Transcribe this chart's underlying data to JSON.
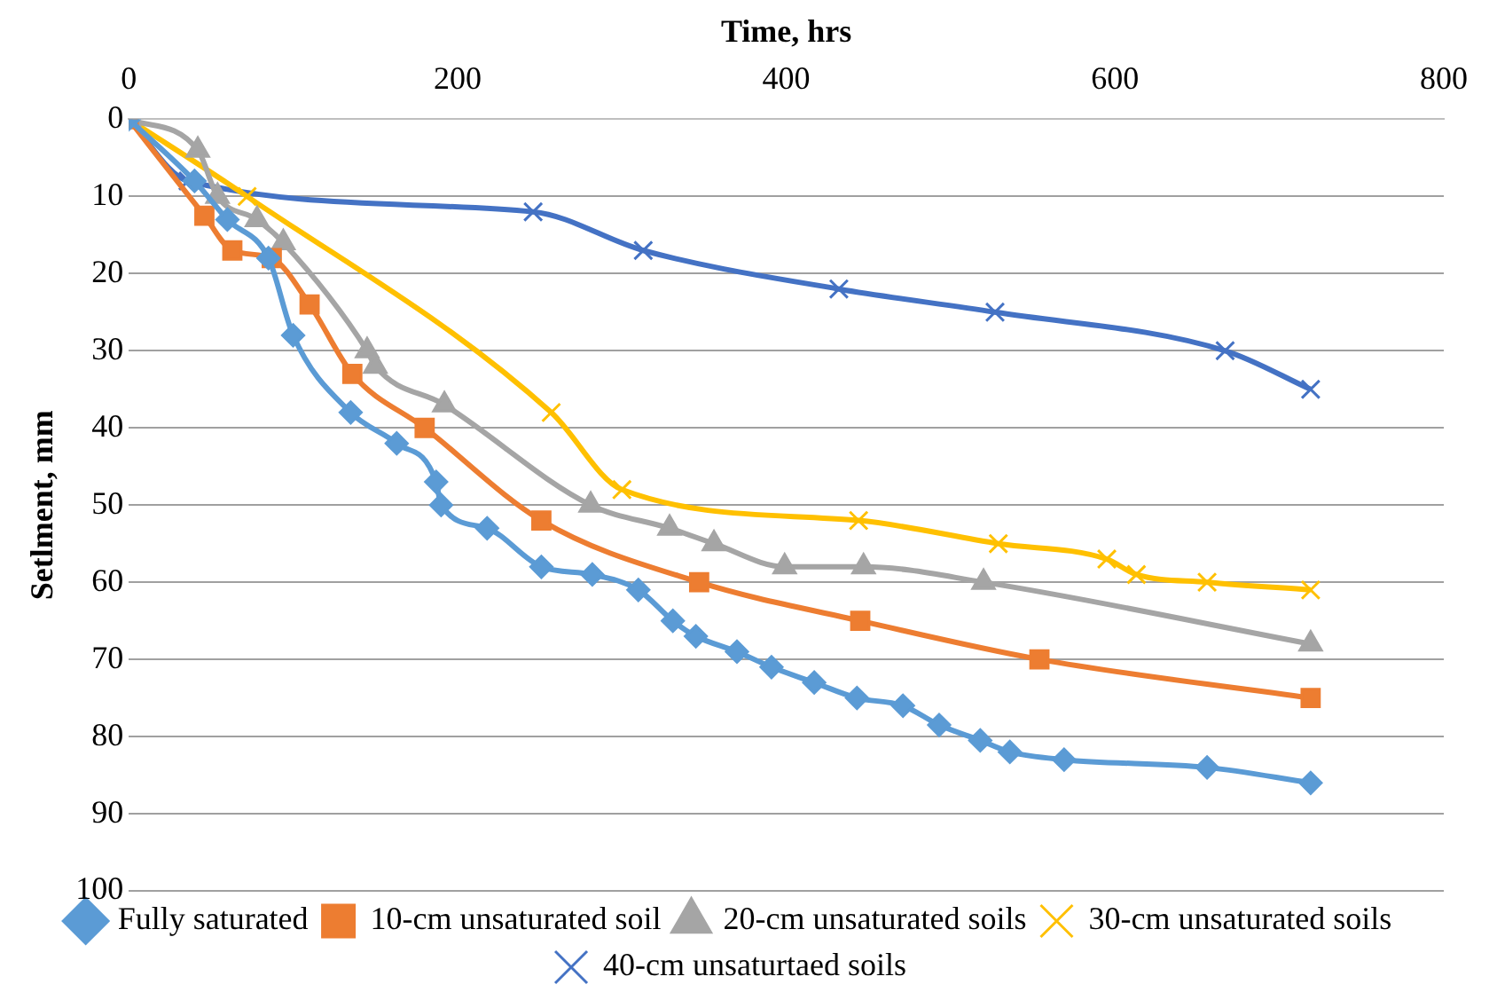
{
  "chart_data": {
    "type": "line",
    "xlabel": "Time, hrs",
    "ylabel": "Setlment, mm",
    "xlim": [
      0,
      800
    ],
    "xticks": [
      0,
      200,
      400,
      600,
      800
    ],
    "ylim": [
      100,
      0
    ],
    "yticks": [
      0,
      10,
      20,
      30,
      40,
      50,
      60,
      70,
      80,
      90,
      100
    ],
    "grid": "y",
    "legend": "bottom",
    "line_style": "solid",
    "series": [
      {
        "name": "Fully saturated",
        "color": "#5b9bd5",
        "marker": "diamond",
        "x": [
          0,
          40,
          60,
          85,
          100,
          135,
          163,
          187,
          190,
          218,
          251,
          282,
          310,
          331,
          345,
          370,
          391,
          417,
          443,
          471,
          493,
          518,
          536,
          569,
          656,
          719
        ],
        "values": [
          0,
          8,
          13,
          18,
          28,
          38,
          42,
          47,
          50,
          53,
          58,
          59,
          61,
          65,
          67,
          69,
          71,
          73,
          75,
          76,
          78.5,
          80.5,
          82,
          83,
          84,
          86
        ]
      },
      {
        "name": "10-cm unsaturated soil",
        "color": "#ed7d31",
        "marker": "square",
        "x": [
          0,
          46,
          63,
          87,
          110,
          136,
          180,
          251,
          347,
          445,
          554,
          719
        ],
        "values": [
          0,
          12.5,
          17,
          18,
          24,
          33,
          40,
          52,
          60,
          65,
          70,
          75
        ]
      },
      {
        "name": "20-cm unsaturated soils",
        "color": "#a5a5a5",
        "marker": "triangle",
        "x": [
          0,
          42,
          54,
          78,
          94,
          145,
          150,
          192,
          281,
          329,
          356,
          399,
          447,
          520,
          719
        ],
        "values": [
          0,
          4,
          10,
          13,
          16,
          30,
          32,
          37,
          50,
          53,
          55,
          58,
          58,
          60,
          68
        ]
      },
      {
        "name": "30-cm unsaturated soils",
        "color": "#ffc000",
        "marker": "cross",
        "x": [
          0,
          72,
          257,
          300,
          444,
          529,
          595,
          613,
          656,
          719
        ],
        "values": [
          0,
          10,
          38,
          48,
          52,
          55,
          57,
          59,
          60,
          61
        ]
      },
      {
        "name": "40-cm unsaturtaed soils",
        "color": "#4472c4",
        "marker": "cross",
        "x": [
          0,
          36,
          246,
          313,
          432,
          527,
          667,
          719
        ],
        "values": [
          0,
          8,
          12,
          17,
          22,
          25,
          30,
          35
        ]
      }
    ]
  }
}
